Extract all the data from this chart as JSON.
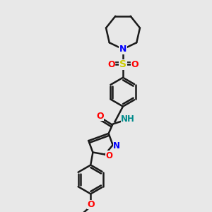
{
  "background_color": "#e8e8e8",
  "line_color": "#1a1a1a",
  "bond_width": 1.8,
  "figsize": [
    3.0,
    3.0
  ],
  "dpi": 100,
  "atoms": {
    "N_blue": "#0000ff",
    "O_red": "#ff0000",
    "S_yellow": "#cccc00",
    "NH_teal": "#008b8b",
    "C_black": "#1a1a1a"
  },
  "xlim": [
    0,
    10
  ],
  "ylim": [
    0,
    10
  ]
}
